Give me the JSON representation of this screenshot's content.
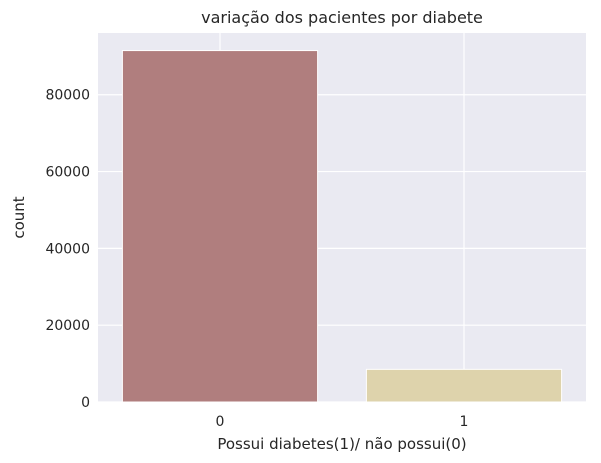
{
  "chart_data": {
    "type": "bar",
    "title": "variação dos pacientes por diabete",
    "xlabel": "Possui diabetes(1)/ não possui(0)",
    "ylabel": "count",
    "categories": [
      "0",
      "1"
    ],
    "values": [
      91500,
      8500
    ],
    "colors": [
      "#B07E7E",
      "#DED3AC"
    ],
    "ylim": [
      0,
      96075
    ],
    "yticks": [
      0,
      20000,
      40000,
      60000,
      80000
    ],
    "grid": true,
    "background": "#EAEAF2",
    "legend": "none"
  }
}
